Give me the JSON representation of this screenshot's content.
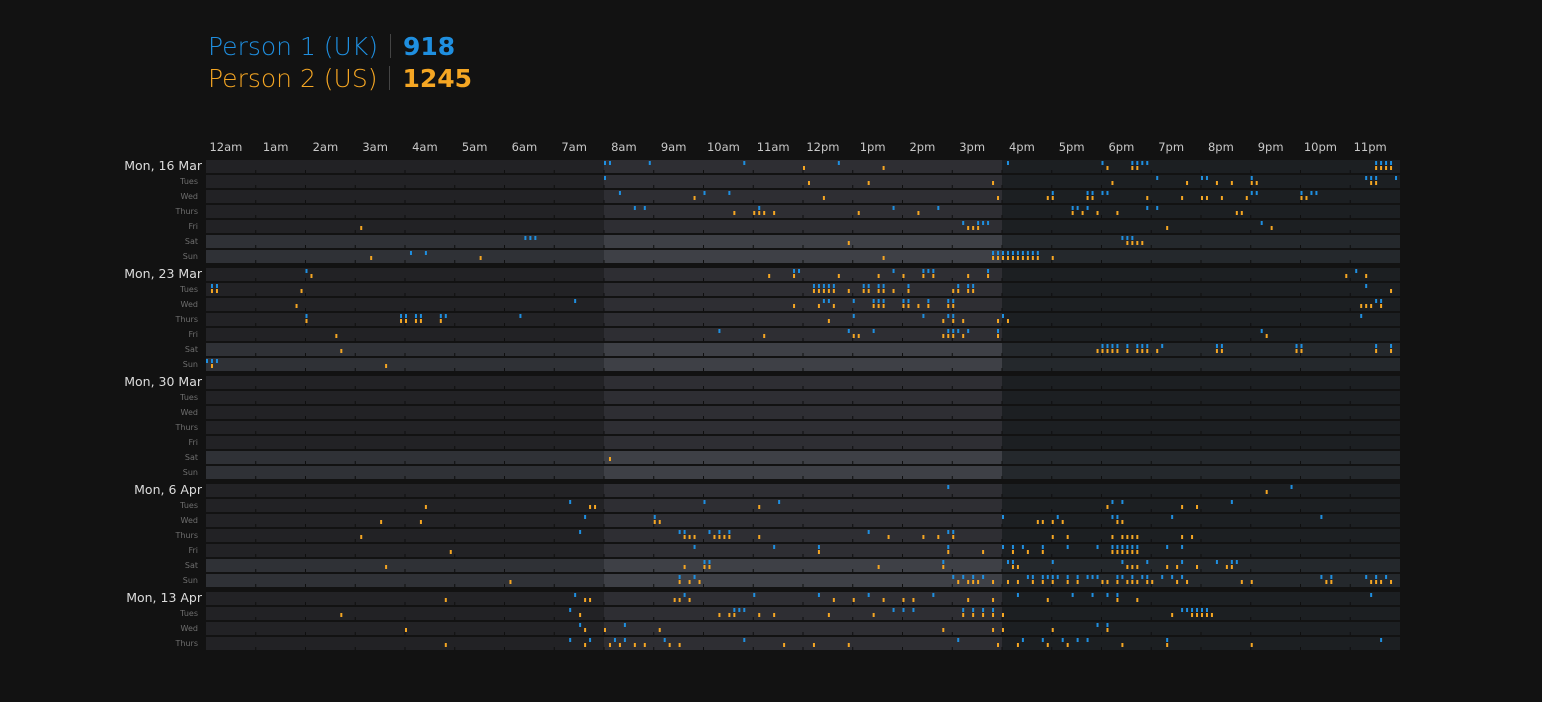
{
  "legend": {
    "person1": {
      "name": "Person 1 (UK)",
      "count": "918",
      "color": "#1f8fe0"
    },
    "person2": {
      "name": "Person 2 (US)",
      "count": "1245",
      "color": "#f5a623"
    }
  },
  "chart_data": {
    "type": "heatmap",
    "title": "",
    "x_axis": {
      "range": [
        0,
        24
      ],
      "unit": "hour of day",
      "tick_labels": [
        "12am",
        "1am",
        "2am",
        "3am",
        "4am",
        "5am",
        "6am",
        "7am",
        "8am",
        "9am",
        "10am",
        "11am",
        "12pm",
        "1pm",
        "2pm",
        "3pm",
        "4pm",
        "5pm",
        "6pm",
        "7pm",
        "8pm",
        "9pm",
        "10pm",
        "11pm"
      ]
    },
    "day_labels": [
      "Tues",
      "Wed",
      "Thurs",
      "Fri",
      "Sat",
      "Sun"
    ],
    "weeks": [
      {
        "label": "Mon, 16 Mar",
        "days": 7
      },
      {
        "label": "Mon, 23 Mar",
        "days": 7
      },
      {
        "label": "Mon, 30 Mar",
        "days": 7
      },
      {
        "label": "Mon, 6 Apr",
        "days": 7
      },
      {
        "label": "Mon, 13 Apr",
        "days": 4
      }
    ],
    "highlight_bands": [
      {
        "from_hour": 8,
        "to_hour": 16,
        "note": "lighter band, UK+US shared waking hours"
      }
    ],
    "series": [
      {
        "name": "Person 1 (UK)",
        "color": "#1f8fe0",
        "messages": [
          [
            0,
            0,
            [
              8.0,
              8.1,
              8.9,
              10.8,
              12.7,
              16.1,
              18.0,
              18.6,
              18.7,
              18.8,
              18.9,
              23.5,
              23.6,
              23.7,
              23.8
            ]
          ],
          [
            0,
            1,
            [
              8.0,
              19.1,
              20.0,
              20.1,
              21.0,
              23.3,
              23.4,
              23.5,
              23.9
            ]
          ],
          [
            0,
            2,
            [
              8.3,
              10.0,
              10.5,
              17.0,
              17.7,
              17.8,
              18.0,
              18.1,
              21.0,
              21.1,
              22.0,
              22.2,
              22.3
            ]
          ],
          [
            0,
            3,
            [
              8.6,
              8.8,
              11.1,
              13.8,
              14.7,
              17.4,
              17.5,
              17.7,
              18.9,
              19.1
            ]
          ],
          [
            0,
            4,
            [
              15.2,
              15.5,
              15.6,
              15.7,
              21.2
            ]
          ],
          [
            0,
            5,
            [
              6.4,
              6.5,
              6.6,
              18.4,
              18.5,
              18.6
            ]
          ],
          [
            0,
            6,
            [
              4.1,
              4.4,
              15.8,
              15.9,
              16.0,
              16.1,
              16.2,
              16.3,
              16.4,
              16.5,
              16.6,
              16.7
            ]
          ],
          [
            1,
            0,
            [
              2.0,
              11.8,
              11.9,
              13.8,
              14.4,
              14.5,
              14.6,
              15.7,
              23.1
            ]
          ],
          [
            1,
            1,
            [
              0.1,
              0.2,
              12.2,
              12.3,
              12.4,
              12.5,
              12.6,
              13.2,
              13.3,
              13.5,
              13.6,
              14.1,
              15.1,
              15.3,
              15.4,
              23.3
            ]
          ],
          [
            1,
            2,
            [
              7.4,
              12.4,
              12.5,
              13.0,
              13.4,
              13.5,
              13.6,
              14.0,
              14.1,
              14.5,
              14.9,
              15.0,
              23.5,
              23.6
            ]
          ],
          [
            1,
            3,
            [
              2.0,
              3.9,
              4.0,
              4.2,
              4.3,
              4.7,
              4.8,
              6.3,
              13.0,
              14.4,
              14.9,
              15.0,
              16.0,
              23.2
            ]
          ],
          [
            1,
            4,
            [
              10.3,
              12.9,
              13.4,
              14.9,
              15.0,
              15.1,
              15.3,
              15.9,
              21.2
            ]
          ],
          [
            1,
            5,
            [
              18.0,
              18.1,
              18.2,
              18.3,
              18.5,
              18.7,
              18.8,
              18.9,
              19.2,
              20.3,
              20.4,
              21.9,
              22.0,
              23.5,
              23.8
            ]
          ],
          [
            1,
            6,
            [
              0.0,
              0.1,
              0.2
            ]
          ],
          [
            3,
            0,
            [
              14.9,
              21.8
            ]
          ],
          [
            3,
            1,
            [
              7.3,
              10.0,
              11.5,
              18.2,
              18.4,
              20.6
            ]
          ],
          [
            3,
            2,
            [
              7.6,
              9.0,
              16.0,
              17.1,
              18.2,
              18.3,
              19.4,
              22.4
            ]
          ],
          [
            3,
            3,
            [
              7.5,
              9.5,
              9.6,
              10.1,
              10.3,
              10.5,
              13.3,
              14.9,
              15.0
            ]
          ],
          [
            3,
            4,
            [
              9.8,
              11.4,
              12.3,
              14.9,
              16.0,
              16.2,
              16.4,
              16.8,
              17.3,
              17.9,
              18.2,
              18.3,
              18.4,
              18.5,
              18.6,
              18.7,
              19.3,
              19.6
            ]
          ],
          [
            3,
            5,
            [
              10.0,
              10.1,
              14.8,
              16.1,
              16.2,
              17.0,
              18.4,
              18.9,
              19.6,
              20.3,
              20.6,
              20.7
            ]
          ],
          [
            3,
            6,
            [
              9.5,
              9.8,
              15.0,
              15.2,
              15.4,
              15.6,
              16.5,
              16.6,
              16.8,
              16.9,
              17.0,
              17.1,
              17.3,
              17.5,
              17.7,
              17.8,
              17.9,
              18.3,
              18.4,
              18.6,
              18.8,
              18.9,
              19.2,
              19.4,
              19.6,
              22.4,
              22.6,
              23.3,
              23.5,
              23.7
            ]
          ],
          [
            4,
            0,
            [
              7.4,
              9.6,
              11.0,
              12.3,
              13.3,
              14.6,
              16.3,
              17.4,
              17.8,
              18.1,
              18.3,
              23.4
            ]
          ],
          [
            4,
            1,
            [
              7.3,
              10.6,
              10.7,
              10.8,
              13.8,
              14.0,
              14.2,
              15.2,
              15.4,
              15.6,
              15.8,
              19.6,
              19.7,
              19.8,
              19.9,
              20.0,
              20.1
            ]
          ],
          [
            4,
            2,
            [
              7.5,
              8.4,
              17.9,
              18.1
            ]
          ],
          [
            4,
            3,
            [
              7.3,
              7.7,
              8.2,
              8.4,
              9.2,
              10.8,
              15.1,
              16.4,
              16.8,
              17.2,
              17.5,
              17.7,
              19.3,
              23.6
            ]
          ]
        ]
      },
      {
        "name": "Person 2 (US)",
        "color": "#f5a623",
        "messages": [
          [
            0,
            0,
            [
              12.0,
              13.6,
              18.1,
              18.6,
              18.7,
              23.5,
              23.6,
              23.7,
              23.8
            ]
          ],
          [
            0,
            1,
            [
              12.1,
              13.3,
              15.8,
              18.2,
              19.7,
              20.3,
              20.6,
              21.0,
              21.1,
              23.4,
              23.5
            ]
          ],
          [
            0,
            2,
            [
              9.8,
              12.4,
              15.9,
              16.9,
              17.0,
              17.7,
              17.8,
              18.9,
              19.6,
              20.0,
              20.1,
              20.4,
              20.9,
              22.0,
              22.1
            ]
          ],
          [
            0,
            3,
            [
              10.6,
              11.0,
              11.1,
              11.2,
              11.4,
              13.1,
              14.3,
              17.4,
              17.6,
              17.9,
              18.3,
              20.7,
              20.8
            ]
          ],
          [
            0,
            4,
            [
              3.1,
              15.3,
              15.4,
              15.5,
              19.3,
              21.4
            ]
          ],
          [
            0,
            5,
            [
              12.9,
              18.5,
              18.6,
              18.7,
              18.8
            ]
          ],
          [
            0,
            6,
            [
              3.3,
              5.5,
              13.6,
              15.8,
              15.9,
              16.0,
              16.1,
              16.2,
              16.3,
              16.4,
              16.5,
              16.6,
              16.7,
              17.0
            ]
          ],
          [
            1,
            0,
            [
              2.1,
              11.3,
              11.8,
              12.7,
              13.5,
              14.0,
              14.4,
              14.6,
              15.3,
              15.7,
              22.9,
              23.3
            ]
          ],
          [
            1,
            1,
            [
              0.1,
              0.2,
              1.9,
              12.2,
              12.3,
              12.4,
              12.5,
              12.6,
              12.9,
              13.2,
              13.3,
              13.5,
              13.6,
              13.8,
              14.1,
              15.0,
              15.1,
              15.3,
              15.4,
              23.8
            ]
          ],
          [
            1,
            2,
            [
              1.8,
              11.8,
              12.3,
              12.6,
              13.4,
              13.5,
              13.6,
              14.0,
              14.1,
              14.3,
              14.5,
              14.9,
              15.0,
              23.2,
              23.3,
              23.4,
              23.6
            ]
          ],
          [
            1,
            3,
            [
              2.0,
              3.9,
              4.0,
              4.2,
              4.3,
              4.7,
              12.5,
              14.8,
              15.0,
              15.2,
              15.9,
              16.1
            ]
          ],
          [
            1,
            4,
            [
              2.6,
              11.2,
              13.0,
              13.1,
              14.8,
              14.9,
              15.0,
              15.2,
              15.9,
              21.3
            ]
          ],
          [
            1,
            5,
            [
              2.7,
              17.9,
              18.0,
              18.1,
              18.2,
              18.3,
              18.5,
              18.7,
              18.8,
              18.9,
              19.1,
              20.3,
              20.4,
              21.9,
              22.0,
              23.5,
              23.8
            ]
          ],
          [
            1,
            6,
            [
              0.1,
              3.6
            ]
          ],
          [
            2,
            5,
            [
              8.1
            ]
          ],
          [
            3,
            0,
            [
              21.3
            ]
          ],
          [
            3,
            1,
            [
              4.4,
              7.7,
              7.8,
              11.1,
              18.1,
              19.6,
              19.9
            ]
          ],
          [
            3,
            2,
            [
              3.5,
              4.3,
              9.0,
              9.1,
              16.7,
              16.8,
              17.0,
              17.2,
              18.3,
              18.4
            ]
          ],
          [
            3,
            3,
            [
              3.1,
              9.6,
              9.7,
              9.8,
              10.2,
              10.3,
              10.4,
              10.5,
              11.1,
              13.7,
              14.4,
              14.7,
              15.0,
              17.0,
              17.3,
              18.2,
              18.4,
              18.5,
              18.6,
              18.7,
              19.6,
              19.8
            ]
          ],
          [
            3,
            4,
            [
              4.9,
              12.3,
              14.9,
              15.6,
              16.2,
              16.5,
              16.8,
              18.2,
              18.3,
              18.4,
              18.5,
              18.6,
              18.7
            ]
          ],
          [
            3,
            5,
            [
              3.6,
              9.6,
              10.0,
              10.1,
              13.5,
              14.8,
              16.2,
              16.3,
              18.5,
              18.6,
              18.7,
              19.3,
              19.5,
              19.9,
              20.5,
              20.6
            ]
          ],
          [
            3,
            6,
            [
              6.1,
              9.5,
              9.7,
              9.9,
              15.1,
              15.3,
              15.4,
              15.5,
              15.8,
              16.1,
              16.3,
              16.6,
              16.8,
              17.0,
              17.3,
              17.5,
              18.0,
              18.1,
              18.3,
              18.5,
              18.6,
              18.7,
              18.9,
              19.0,
              19.5,
              19.7,
              20.8,
              21.0,
              22.5,
              22.6,
              23.4,
              23.5,
              23.6,
              23.8
            ]
          ],
          [
            4,
            0,
            [
              4.8,
              7.6,
              7.7,
              9.4,
              9.5,
              9.7,
              12.6,
              13.0,
              13.6,
              14.0,
              14.2,
              15.3,
              15.8,
              16.9,
              18.3,
              18.7
            ]
          ],
          [
            4,
            1,
            [
              2.7,
              7.5,
              10.3,
              10.5,
              10.6,
              11.1,
              11.4,
              12.5,
              13.4,
              15.2,
              15.4,
              15.6,
              15.8,
              16.0,
              19.4,
              19.8,
              19.9,
              20.0,
              20.1,
              20.2
            ]
          ],
          [
            4,
            2,
            [
              4.0,
              7.6,
              8.0,
              9.1,
              14.8,
              15.8,
              16.0,
              17.0,
              18.1
            ]
          ],
          [
            4,
            3,
            [
              4.8,
              7.6,
              8.1,
              8.3,
              8.6,
              8.8,
              9.3,
              9.5,
              11.6,
              12.2,
              12.9,
              15.9,
              16.3,
              16.9,
              17.3,
              18.4,
              19.3,
              21.0
            ]
          ]
        ]
      }
    ]
  }
}
